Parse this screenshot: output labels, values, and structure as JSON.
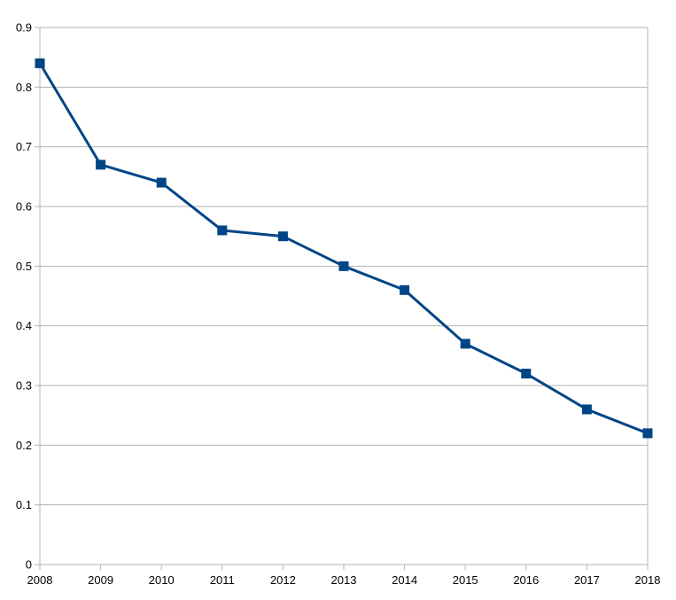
{
  "chart_data": {
    "type": "line",
    "title": "",
    "xlabel": "",
    "ylabel": "",
    "x": [
      "2008",
      "2009",
      "2010",
      "2011",
      "2012",
      "2013",
      "2014",
      "2015",
      "2016",
      "2017",
      "2018"
    ],
    "series": [
      {
        "values": [
          0.84,
          0.67,
          0.64,
          0.56,
          0.55,
          0.5,
          0.46,
          0.37,
          0.32,
          0.26,
          0.22
        ],
        "color": "#004586",
        "marker": "square"
      }
    ],
    "ylim": [
      0,
      0.9
    ],
    "yticks": [
      "0",
      "0.1",
      "0.2",
      "0.3",
      "0.4",
      "0.5",
      "0.6",
      "0.7",
      "0.8",
      "0.9"
    ],
    "grid": true,
    "legend": "none"
  }
}
